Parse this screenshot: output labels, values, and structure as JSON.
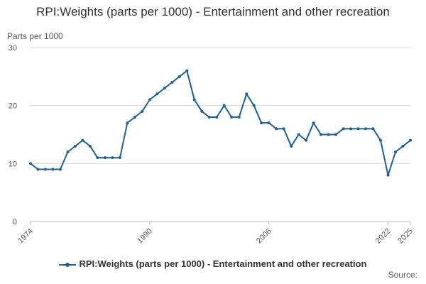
{
  "chart_data": {
    "type": "line",
    "title": "RPI:Weights (parts per 1000) - Entertainment and other recreation",
    "ylabel": "Parts per 1000",
    "xlabel": "",
    "ylim": [
      0,
      30
    ],
    "xlim": [
      1974,
      2025
    ],
    "y_ticks": [
      0,
      10,
      20,
      30
    ],
    "x_tick_labels": [
      "1974",
      "1990",
      "2006",
      "2022",
      "2025"
    ],
    "grid": true,
    "legend_position": "bottom",
    "series": [
      {
        "name": "RPI:Weights (parts per 1000) - Entertainment and other recreation",
        "color": "#206095",
        "x": [
          1974,
          1975,
          1976,
          1977,
          1978,
          1979,
          1980,
          1981,
          1982,
          1983,
          1984,
          1985,
          1986,
          1987,
          1988,
          1989,
          1990,
          1991,
          1992,
          1993,
          1994,
          1995,
          1996,
          1997,
          1998,
          1999,
          2000,
          2001,
          2002,
          2003,
          2004,
          2005,
          2006,
          2007,
          2008,
          2009,
          2010,
          2011,
          2012,
          2013,
          2014,
          2015,
          2016,
          2017,
          2018,
          2019,
          2020,
          2021,
          2022,
          2023,
          2024,
          2025
        ],
        "values": [
          10,
          9,
          9,
          9,
          9,
          12,
          13,
          14,
          13,
          11,
          11,
          11,
          11,
          17,
          18,
          19,
          21,
          22,
          23,
          24,
          25,
          26,
          21,
          19,
          18,
          18,
          20,
          18,
          18,
          22,
          20,
          17,
          17,
          16,
          16,
          13,
          15,
          14,
          17,
          15,
          15,
          15,
          16,
          16,
          16,
          16,
          16,
          14,
          8,
          12,
          13,
          14
        ]
      }
    ]
  },
  "legend": {
    "label": "RPI:Weights (parts per 1000) - Entertainment and other recreation"
  },
  "credit": {
    "label": "Source:"
  }
}
